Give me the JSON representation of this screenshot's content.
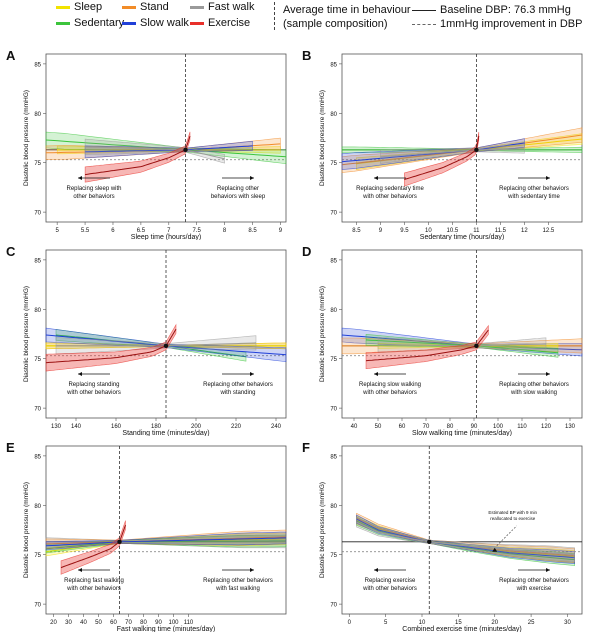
{
  "legend": {
    "series": [
      {
        "name": "Sleep",
        "color": "#f2e300"
      },
      {
        "name": "Stand",
        "color": "#f28c28"
      },
      {
        "name": "Fast walk",
        "color": "#9a9a9a"
      },
      {
        "name": "Sedentary",
        "color": "#3cc43c"
      },
      {
        "name": "Slow walk",
        "color": "#2040d8"
      },
      {
        "name": "Exercise",
        "color": "#e8302a"
      }
    ],
    "avg_line_label_1": "Average time in behaviour",
    "avg_line_label_2": "(sample composition)",
    "baseline_label": "Baseline DBP: 76.3 mmHg",
    "improvement_label": "1mmHg improvement in DBP"
  },
  "chart_data": [
    {
      "panel": "A",
      "type": "line",
      "xlabel": "Sleep time (hours/day)",
      "ylabel": "Diastolic blood pressure (mmHG)",
      "xlim": [
        4.8,
        9.1
      ],
      "ylim": [
        69,
        86
      ],
      "xticks": [
        "5",
        "5.5",
        "6",
        "6.5",
        "7",
        "7.5",
        "8",
        "8.5",
        "9"
      ],
      "yticks": [
        "70",
        "75",
        "80",
        "85"
      ],
      "baseline": 76.3,
      "improvement": 75.3,
      "avg_x": 7.3,
      "left_annotation": [
        "Replacing sleep with",
        "other behaviors"
      ],
      "right_annotation": [
        "Replacing other",
        "behaviors with sleep"
      ],
      "series": [
        {
          "name": "Sleep",
          "x": [
            5,
            9
          ],
          "y": [
            76.3,
            76.3
          ],
          "band": 0.4
        },
        {
          "name": "Sedentary",
          "x": [
            4.8,
            7.3,
            9.1
          ],
          "y": [
            77.3,
            76.3,
            75.6
          ],
          "band": 0.8
        },
        {
          "name": "Stand",
          "x": [
            4.8,
            7.3,
            9
          ],
          "y": [
            76.0,
            76.3,
            76.9
          ],
          "band": 0.7
        },
        {
          "name": "Slow walk",
          "x": [
            5.5,
            7.3,
            8.5
          ],
          "y": [
            76.1,
            76.3,
            76.7
          ],
          "band": 0.7
        },
        {
          "name": "Fast walk",
          "x": [
            5.5,
            7.3,
            8
          ],
          "y": [
            76.6,
            76.3,
            75.4
          ],
          "band": 0.9
        },
        {
          "name": "Exercise",
          "x": [
            5.5,
            6.5,
            7.0,
            7.3,
            7.38
          ],
          "y": [
            73.8,
            74.6,
            75.5,
            76.3,
            77.7
          ],
          "band": 0.6
        }
      ]
    },
    {
      "panel": "B",
      "type": "line",
      "xlabel": "Sedentary time (hours/day)",
      "ylabel": "Diastolic blood pressure (mmHG)",
      "xlim": [
        8.2,
        13.2
      ],
      "ylim": [
        69,
        86
      ],
      "xticks": [
        "8.5",
        "9",
        "9.5",
        "10",
        "10.5",
        "11",
        "11.5",
        "12",
        "12.5"
      ],
      "yticks": [
        "70",
        "75",
        "80",
        "85"
      ],
      "baseline": 76.3,
      "improvement": 75.3,
      "avg_x": 11.0,
      "left_annotation": [
        "Replacing sedentary time",
        "with other behaviors"
      ],
      "right_annotation": [
        "Replacing other behaviors",
        "with sedentary time"
      ],
      "series": [
        {
          "name": "Sedentary",
          "x": [
            8.2,
            11.0,
            13.2
          ],
          "y": [
            76.3,
            76.3,
            76.3
          ],
          "band": 0.3
        },
        {
          "name": "Sleep",
          "x": [
            8.5,
            11.0,
            13.2
          ],
          "y": [
            74.9,
            76.3,
            77.4
          ],
          "band": 0.6
        },
        {
          "name": "Stand",
          "x": [
            8.2,
            11.0,
            13.2
          ],
          "y": [
            74.8,
            76.3,
            77.8
          ],
          "band": 0.8
        },
        {
          "name": "Slow walk",
          "x": [
            8.2,
            11.0,
            12.0
          ],
          "y": [
            75.1,
            76.3,
            77.0
          ],
          "band": 0.8
        },
        {
          "name": "Fast walk",
          "x": [
            9.0,
            11.0,
            12.0
          ],
          "y": [
            75.6,
            76.3,
            76.4
          ],
          "band": 0.8
        },
        {
          "name": "Exercise",
          "x": [
            9.5,
            10.3,
            10.8,
            11.0,
            11.05
          ],
          "y": [
            73.3,
            74.5,
            75.6,
            76.3,
            77.7
          ],
          "band": 0.6
        }
      ]
    },
    {
      "panel": "C",
      "type": "line",
      "xlabel": "Standing time (minutes/day)",
      "ylabel": "Diastolic blood pressure (mmHG)",
      "xlim": [
        125,
        245
      ],
      "ylim": [
        69,
        86
      ],
      "xticks": [
        "130",
        "140",
        "160",
        "180",
        "200",
        "220",
        "240"
      ],
      "yticks": [
        "70",
        "75",
        "80",
        "85"
      ],
      "baseline": 76.3,
      "improvement": 75.3,
      "avg_x": 185,
      "left_annotation": [
        "Replacing standing",
        "with other behaviors"
      ],
      "right_annotation": [
        "Replacing other behaviors",
        "with standing"
      ],
      "series": [
        {
          "name": "Stand",
          "x": [
            125,
            245
          ],
          "y": [
            76.3,
            76.3
          ],
          "band": 0.3
        },
        {
          "name": "Sleep",
          "x": [
            125,
            185,
            245
          ],
          "y": [
            76.3,
            76.3,
            76.3
          ],
          "band": 0.3
        },
        {
          "name": "Sedentary",
          "x": [
            130,
            185,
            225
          ],
          "y": [
            77.4,
            76.3,
            75.2
          ],
          "band": 0.6
        },
        {
          "name": "Slow walk",
          "x": [
            125,
            185,
            245
          ],
          "y": [
            77.4,
            76.3,
            75.4
          ],
          "band": 0.7
        },
        {
          "name": "Fast walk",
          "x": [
            130,
            185,
            230
          ],
          "y": [
            76.3,
            76.3,
            76.6
          ],
          "band": 0.9
        },
        {
          "name": "Exercise",
          "x": [
            125,
            160,
            178,
            185,
            190
          ],
          "y": [
            74.6,
            75.1,
            75.7,
            76.3,
            78.0
          ],
          "band": 0.6
        }
      ]
    },
    {
      "panel": "D",
      "type": "line",
      "xlabel": "Slow walking time (minutes/day)",
      "ylabel": "Diastolic blood pressure (mmHG)",
      "xlim": [
        35,
        135
      ],
      "ylim": [
        69,
        86
      ],
      "xticks": [
        "40",
        "50",
        "60",
        "70",
        "80",
        "90",
        "100",
        "110",
        "120",
        "130"
      ],
      "yticks": [
        "70",
        "75",
        "80",
        "85"
      ],
      "baseline": 76.3,
      "improvement": 75.3,
      "avg_x": 91,
      "left_annotation": [
        "Replacing slow walking",
        "with other behaviors"
      ],
      "right_annotation": [
        "Replacing other behaviors",
        "with slow walking"
      ],
      "series": [
        {
          "name": "Slow walk",
          "x": [
            35,
            91,
            135
          ],
          "y": [
            77.4,
            76.3,
            75.9
          ],
          "band": 0.7
        },
        {
          "name": "Stand",
          "x": [
            35,
            91,
            135
          ],
          "y": [
            76.3,
            76.3,
            76.3
          ],
          "band": 0.8
        },
        {
          "name": "Sleep",
          "x": [
            50,
            91,
            125
          ],
          "y": [
            76.3,
            76.3,
            76.3
          ],
          "band": 0.3
        },
        {
          "name": "Sedentary",
          "x": [
            45,
            91,
            125
          ],
          "y": [
            76.9,
            76.3,
            75.6
          ],
          "band": 0.6
        },
        {
          "name": "Fast walk",
          "x": [
            50,
            91,
            120
          ],
          "y": [
            76.4,
            76.3,
            76.5
          ],
          "band": 0.9
        },
        {
          "name": "Exercise",
          "x": [
            45,
            70,
            85,
            91,
            96
          ],
          "y": [
            74.8,
            75.3,
            75.9,
            76.3,
            77.9
          ],
          "band": 0.6
        }
      ]
    },
    {
      "panel": "E",
      "type": "line",
      "xlabel": "Fast walking time (minutes/day)",
      "ylabel": "Diastolic blood pressure (mmHG)",
      "xlim": [
        15,
        175
      ],
      "ylim": [
        69,
        86
      ],
      "xticks": [
        "20",
        "30",
        "40",
        "50",
        "60",
        "70",
        "80",
        "90",
        "100",
        "110"
      ],
      "yticks": [
        "70",
        "75",
        "80",
        "85"
      ],
      "baseline": 76.3,
      "improvement": 75.3,
      "avg_x": 64,
      "left_annotation": [
        "Replacing fast walking",
        "with other behaviors"
      ],
      "right_annotation": [
        "Replacing other behaviors",
        "with fast walking"
      ],
      "series": [
        {
          "name": "Fast walk",
          "x": [
            15,
            64,
            175
          ],
          "y": [
            76.3,
            76.3,
            76.3
          ],
          "band": 0.6
        },
        {
          "name": "Sleep",
          "x": [
            15,
            64,
            175
          ],
          "y": [
            75.3,
            76.3,
            76.6
          ],
          "band": 0.6
        },
        {
          "name": "Sedentary",
          "x": [
            15,
            64,
            175
          ],
          "y": [
            75.6,
            76.3,
            76.4
          ],
          "band": 0.6
        },
        {
          "name": "Stand",
          "x": [
            15,
            64,
            175
          ],
          "y": [
            76.1,
            76.3,
            76.8
          ],
          "band": 0.7
        },
        {
          "name": "Slow walk",
          "x": [
            15,
            64,
            175
          ],
          "y": [
            75.9,
            76.3,
            76.7
          ],
          "band": 0.6
        },
        {
          "name": "Exercise",
          "x": [
            25,
            45,
            58,
            64,
            68
          ],
          "y": [
            73.7,
            74.8,
            75.6,
            76.3,
            78.0
          ],
          "band": 0.7
        }
      ]
    },
    {
      "panel": "F",
      "type": "line",
      "xlabel": "Combined exercise time (minutes/day)",
      "ylabel": "Diastolic blood pressure (mmHG)",
      "xlim": [
        -1,
        32
      ],
      "ylim": [
        69,
        86
      ],
      "xticks": [
        "0",
        "5",
        "10",
        "15",
        "20",
        "25",
        "30"
      ],
      "yticks": [
        "70",
        "75",
        "80",
        "85"
      ],
      "baseline": 76.3,
      "improvement": 75.3,
      "avg_x": 11,
      "left_annotation": [
        "Replacing exercise",
        "with other behaviors"
      ],
      "right_annotation": [
        "Replacing other behaviors",
        "with exercise"
      ],
      "callout": [
        "Estimated BP with 9 min",
        "reallocated to exercise"
      ],
      "series": [
        {
          "name": "Sleep",
          "x": [
            1,
            4,
            8,
            11,
            16,
            22,
            31
          ],
          "y": [
            78.5,
            77.6,
            76.8,
            76.3,
            75.8,
            75.3,
            74.8
          ],
          "band": 0.6
        },
        {
          "name": "Sedentary",
          "x": [
            1,
            4,
            8,
            11,
            16,
            22,
            31
          ],
          "y": [
            78.4,
            77.4,
            76.7,
            76.3,
            75.7,
            75.1,
            74.5
          ],
          "band": 0.6
        },
        {
          "name": "Stand",
          "x": [
            1,
            4,
            8,
            11,
            16,
            22,
            31
          ],
          "y": [
            78.7,
            77.7,
            76.9,
            76.3,
            75.9,
            75.4,
            74.9
          ],
          "band": 0.7
        },
        {
          "name": "Slow walk",
          "x": [
            1,
            4,
            8,
            11,
            16,
            22,
            31
          ],
          "y": [
            78.6,
            77.5,
            76.8,
            76.3,
            75.8,
            75.2,
            74.7
          ],
          "band": 0.6
        },
        {
          "name": "Fast walk",
          "x": [
            1,
            4,
            8,
            11,
            16,
            22,
            31
          ],
          "y": [
            78.3,
            77.3,
            76.7,
            76.3,
            75.9,
            75.5,
            75.0
          ],
          "band": 0.7
        }
      ]
    }
  ]
}
